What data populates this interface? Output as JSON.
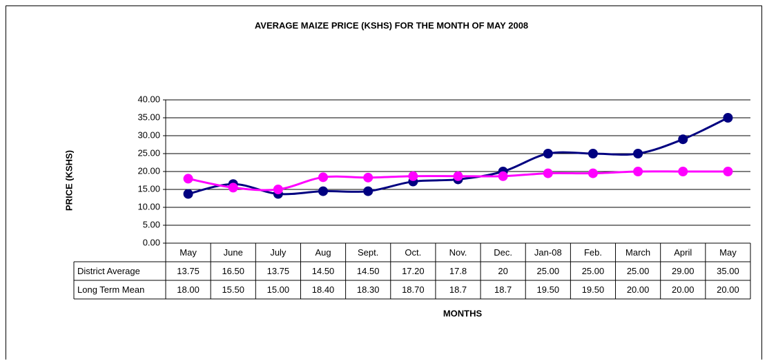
{
  "chart_data": {
    "type": "line",
    "title": "AVERAGE MAIZE PRICE (KSHS) FOR THE MONTH OF MAY 2008",
    "y_label": "PRICE (KSHS)",
    "x_label": "MONTHS",
    "categories": [
      "May",
      "June",
      "July",
      "Aug",
      "Sept.",
      "Oct.",
      "Nov.",
      "Dec.",
      "Jan-08",
      "Feb.",
      "March",
      "April",
      "May"
    ],
    "series": [
      {
        "name": "District Average",
        "color": "#000080",
        "values": [
          13.75,
          16.5,
          13.75,
          14.5,
          14.5,
          17.2,
          17.8,
          20,
          25,
          25,
          25,
          29,
          35
        ],
        "value_labels": [
          "13.75",
          "16.50",
          "13.75",
          "14.50",
          "14.50",
          "17.20",
          "17.8",
          "20",
          "25.00",
          "25.00",
          "25.00",
          "29.00",
          "35.00"
        ]
      },
      {
        "name": "Long Term Mean",
        "color": "#ff00ff",
        "values": [
          18,
          15.5,
          15,
          18.4,
          18.3,
          18.7,
          18.7,
          18.7,
          19.5,
          19.5,
          20,
          20,
          20
        ],
        "value_labels": [
          "18.00",
          "15.50",
          "15.00",
          "18.40",
          "18.30",
          "18.70",
          "18.7",
          "18.7",
          "19.50",
          "19.50",
          "20.00",
          "20.00",
          "20.00"
        ]
      }
    ],
    "ylim": [
      0,
      40
    ],
    "yticks": [
      {
        "value": 0,
        "label": "0.00"
      },
      {
        "value": 5,
        "label": "5.00"
      },
      {
        "value": 10,
        "label": "10.00"
      },
      {
        "value": 15,
        "label": "15.00"
      },
      {
        "value": 20,
        "label": "20.00"
      },
      {
        "value": 25,
        "label": "25.00"
      },
      {
        "value": 30,
        "label": "30.00"
      },
      {
        "value": 35,
        "label": "35.00"
      },
      {
        "value": 40,
        "label": "40.00"
      }
    ],
    "grid": true,
    "smooth": true
  }
}
